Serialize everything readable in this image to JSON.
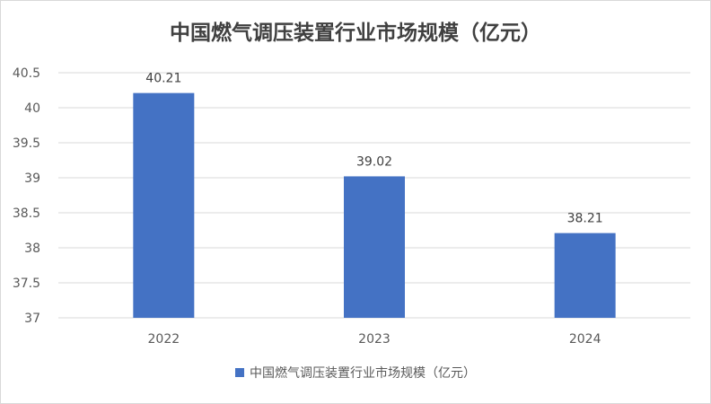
{
  "chart_data": {
    "type": "bar",
    "title": "中国燃气调压装置行业市场规模（亿元）",
    "categories": [
      "2022",
      "2023",
      "2024"
    ],
    "series": [
      {
        "name": "中国燃气调压装置行业市场规模（亿元）",
        "values": [
          40.21,
          39.02,
          38.21
        ]
      }
    ],
    "data_labels": [
      "40.21",
      "39.02",
      "38.21"
    ],
    "yticks": [
      "37",
      "37.5",
      "38",
      "38.5",
      "39",
      "39.5",
      "40",
      "40.5"
    ],
    "ylim": [
      37,
      40.5
    ],
    "xlabel": "",
    "ylabel": "",
    "grid": true,
    "legend_position": "bottom",
    "colors": {
      "bar": "#4472C4",
      "grid": "#d9d9d9",
      "text": "#595959"
    }
  }
}
